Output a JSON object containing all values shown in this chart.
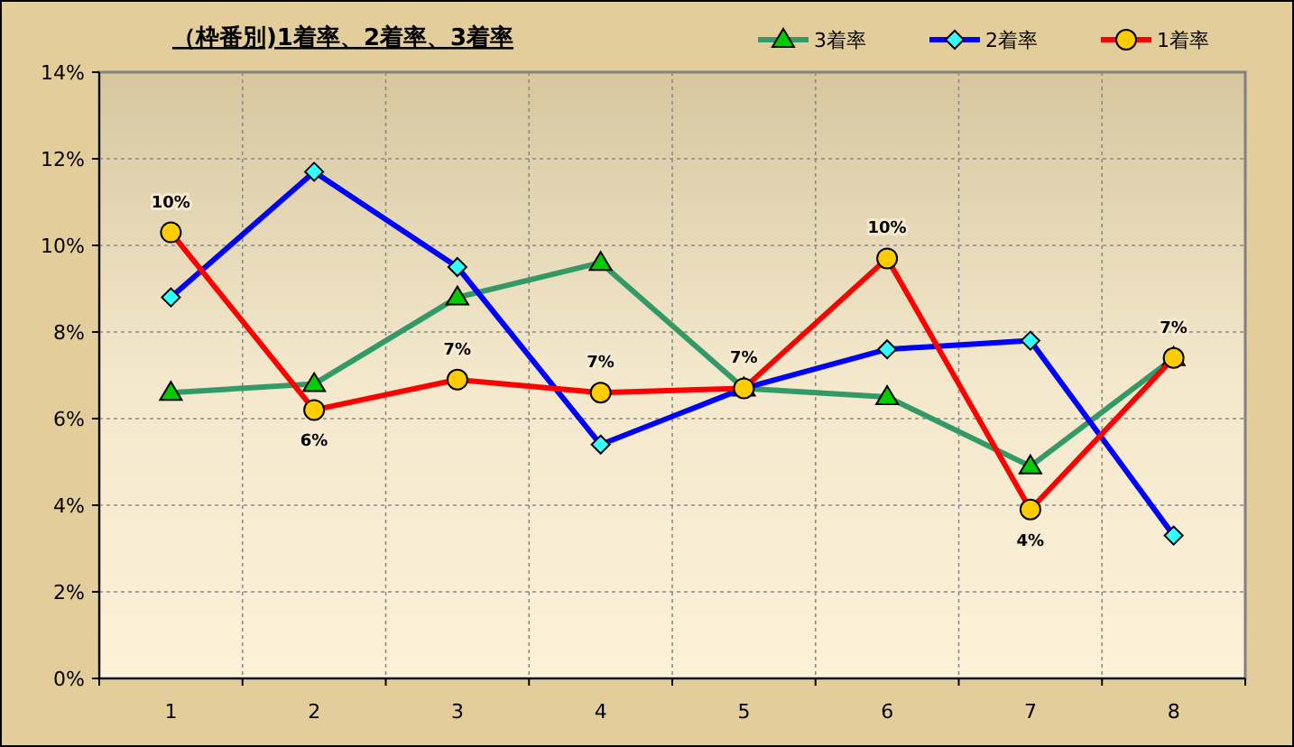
{
  "chart_data": {
    "type": "line",
    "title": "（枠番別)1着率、2着率、3着率",
    "categories": [
      "1",
      "2",
      "3",
      "4",
      "5",
      "6",
      "7",
      "8"
    ],
    "ylim": [
      0,
      14
    ],
    "yticks": [
      {
        "value": 0,
        "label": "0%"
      },
      {
        "value": 2,
        "label": "2%"
      },
      {
        "value": 4,
        "label": "4%"
      },
      {
        "value": 6,
        "label": "6%"
      },
      {
        "value": 8,
        "label": "8%"
      },
      {
        "value": 10,
        "label": "10%"
      },
      {
        "value": 12,
        "label": "12%"
      },
      {
        "value": 14,
        "label": "14%"
      }
    ],
    "grid": true,
    "legend": "top right",
    "series": [
      {
        "name": "3着率",
        "color": "#339966",
        "marker": "triangle",
        "values": [
          6.6,
          6.8,
          8.8,
          9.6,
          6.7,
          6.5,
          4.9,
          7.4
        ]
      },
      {
        "name": "2着率",
        "color": "#0000ff",
        "marker": "diamond",
        "values": [
          8.8,
          11.7,
          9.5,
          5.4,
          6.7,
          7.6,
          7.8,
          3.3
        ]
      },
      {
        "name": "1着率",
        "color": "#ff0000",
        "marker": "circle",
        "values": [
          10.3,
          6.2,
          6.9,
          6.6,
          6.7,
          9.7,
          3.9,
          7.4
        ],
        "value_labels": [
          "10%",
          "6%",
          "7%",
          "7%",
          "7%",
          "10%",
          "4%",
          "7%"
        ]
      }
    ]
  }
}
